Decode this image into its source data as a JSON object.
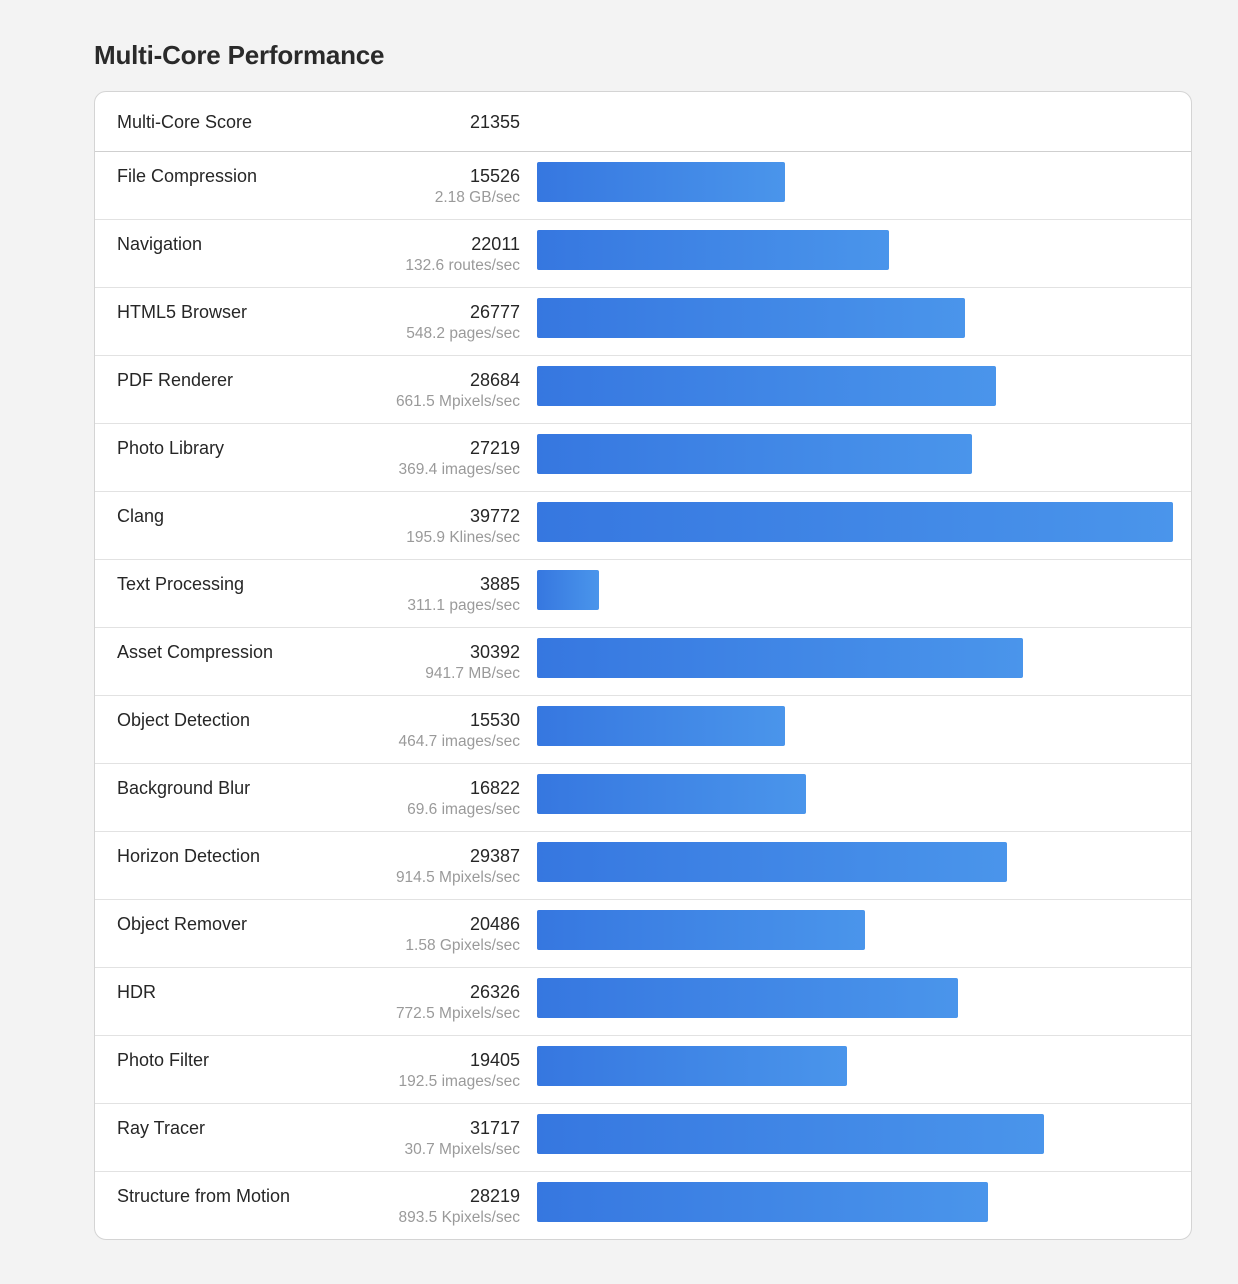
{
  "page": {
    "title": "Multi-Core Performance"
  },
  "summary": {
    "label": "Multi-Core Score",
    "value": "21355"
  },
  "colors": {
    "bar_start": "#3677e0",
    "bar_end": "#4a95eb"
  },
  "chart_data": {
    "type": "bar",
    "orientation": "horizontal",
    "scale_max": 39772,
    "categories": [
      "File Compression",
      "Navigation",
      "HTML5 Browser",
      "PDF Renderer",
      "Photo Library",
      "Clang",
      "Text Processing",
      "Asset Compression",
      "Object Detection",
      "Background Blur",
      "Horizon Detection",
      "Object Remover",
      "HDR",
      "Photo Filter",
      "Ray Tracer",
      "Structure from Motion"
    ],
    "values": [
      15526,
      22011,
      26777,
      28684,
      27219,
      39772,
      3885,
      30392,
      15530,
      16822,
      29387,
      20486,
      26326,
      19405,
      31717,
      28219
    ],
    "rates": [
      "2.18 GB/sec",
      "132.6 routes/sec",
      "548.2 pages/sec",
      "661.5 Mpixels/sec",
      "369.4 images/sec",
      "195.9 Klines/sec",
      "311.1 pages/sec",
      "941.7 MB/sec",
      "464.7 images/sec",
      "69.6 images/sec",
      "914.5 Mpixels/sec",
      "1.58 Gpixels/sec",
      "772.5 Mpixels/sec",
      "192.5 images/sec",
      "30.7 Mpixels/sec",
      "893.5 Kpixels/sec"
    ]
  }
}
